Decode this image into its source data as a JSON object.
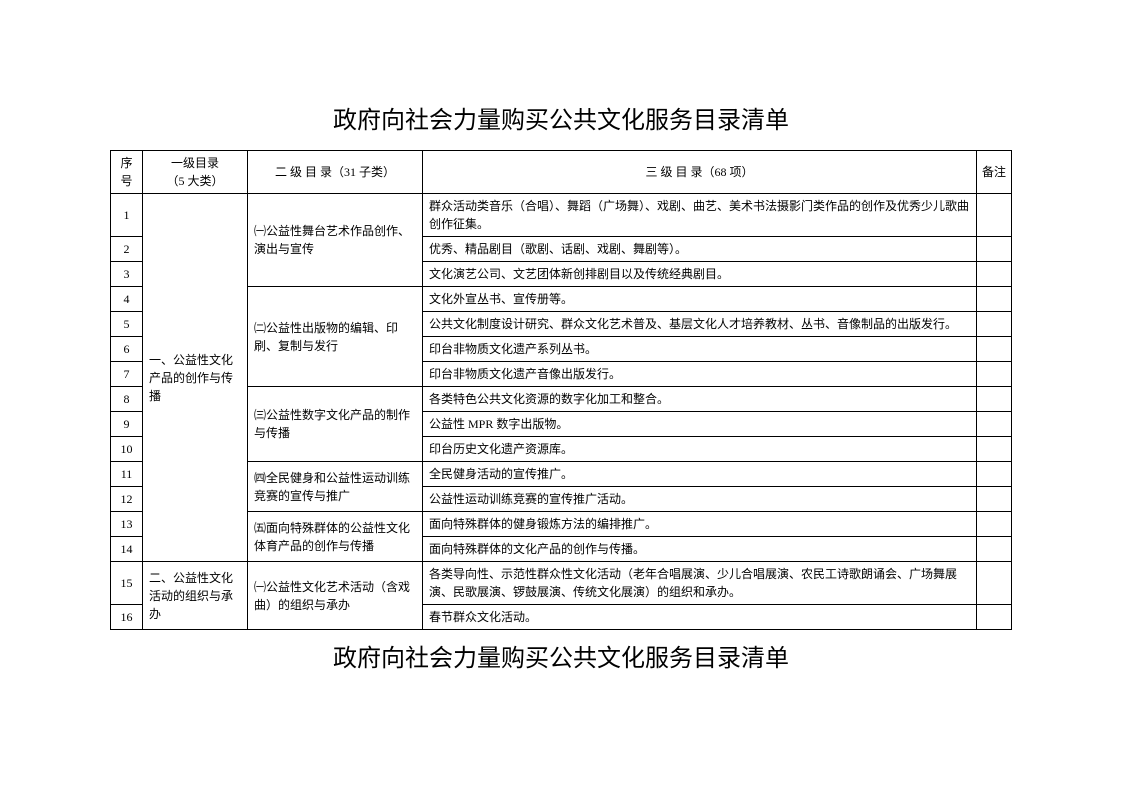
{
  "title_top": "政府向社会力量购买公共文化服务目录清单",
  "title_bottom": "政府向社会力量购买公共文化服务目录清单",
  "headers": {
    "seq": "序号",
    "lvl1_line1": "一级目录",
    "lvl1_line2": "（5 大类）",
    "lvl2": "二 级 目 录（31 子类）",
    "lvl3": "三 级 目 录（68 项）",
    "remark": "备注"
  },
  "lvl1": {
    "cat1": "一、公益性文化产品的创作与传播",
    "cat2": "二、公益性文化活动的组织与承办"
  },
  "lvl2": {
    "s1": "㈠公益性舞台艺术作品创作、演出与宣传",
    "s2": "㈡公益性出版物的编辑、印刷、复制与发行",
    "s3": "㈢公益性数字文化产品的制作与传播",
    "s4": "㈣全民健身和公益性运动训练竞赛的宣传与推广",
    "s5": "㈤面向特殊群体的公益性文化体育产品的创作与传播",
    "s6": "㈠公益性文化艺术活动（含戏曲）的组织与承办"
  },
  "rows": {
    "r1": "群众活动类音乐（合唱）、舞蹈（广场舞）、戏剧、曲艺、美术书法摄影门类作品的创作及优秀少儿歌曲创作征集。",
    "r2": "优秀、精品剧目（歌剧、话剧、戏剧、舞剧等）。",
    "r3": "文化演艺公司、文艺团体新创排剧目以及传统经典剧目。",
    "r4": "文化外宣丛书、宣传册等。",
    "r5": "公共文化制度设计研究、群众文化艺术普及、基层文化人才培养教材、丛书、音像制品的出版发行。",
    "r6": "印台非物质文化遗产系列丛书。",
    "r7": "印台非物质文化遗产音像出版发行。",
    "r8": "各类特色公共文化资源的数字化加工和整合。",
    "r9": "公益性 MPR 数字出版物。",
    "r10": "印台历史文化遗产资源库。",
    "r11": "全民健身活动的宣传推广。",
    "r12": "公益性运动训练竞赛的宣传推广活动。",
    "r13": "面向特殊群体的健身锻炼方法的编排推广。",
    "r14": "面向特殊群体的文化产品的创作与传播。",
    "r15": "各类导向性、示范性群众性文化活动（老年合唱展演、少儿合唱展演、农民工诗歌朗诵会、广场舞展演、民歌展演、锣鼓展演、传统文化展演）的组织和承办。",
    "r16": "春节群众文化活动。"
  },
  "seq": {
    "s1": "1",
    "s2": "2",
    "s3": "3",
    "s4": "4",
    "s5": "5",
    "s6": "6",
    "s7": "7",
    "s8": "8",
    "s9": "9",
    "s10": "10",
    "s11": "11",
    "s12": "12",
    "s13": "13",
    "s14": "14",
    "s15": "15",
    "s16": "16"
  }
}
